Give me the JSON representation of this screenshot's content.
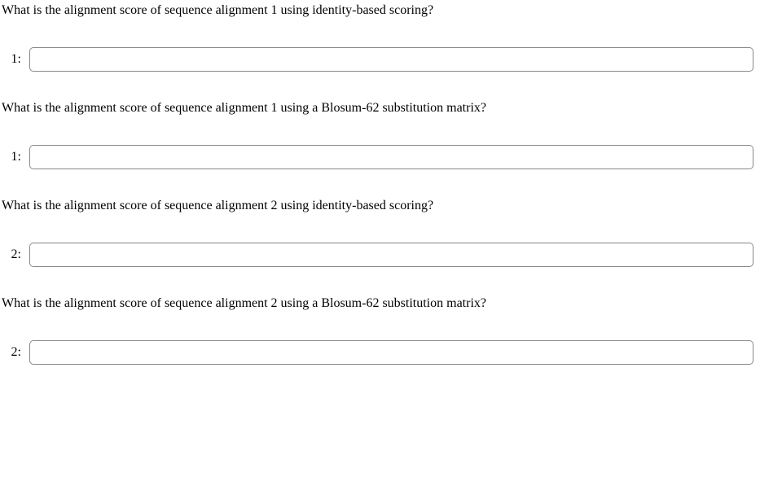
{
  "questions": [
    {
      "prompt": "What is the alignment score of sequence alignment 1 using identity-based scoring?",
      "label": "1:",
      "value": ""
    },
    {
      "prompt": "What is the alignment score of sequence alignment 1 using a Blosum-62 substitution matrix?",
      "label": "1:",
      "value": ""
    },
    {
      "prompt": "What is the alignment score of sequence alignment 2 using identity-based scoring?",
      "label": "2:",
      "value": ""
    },
    {
      "prompt": "What is the alignment score of sequence alignment 2 using a Blosum-62 substitution matrix?",
      "label": "2:",
      "value": ""
    }
  ]
}
